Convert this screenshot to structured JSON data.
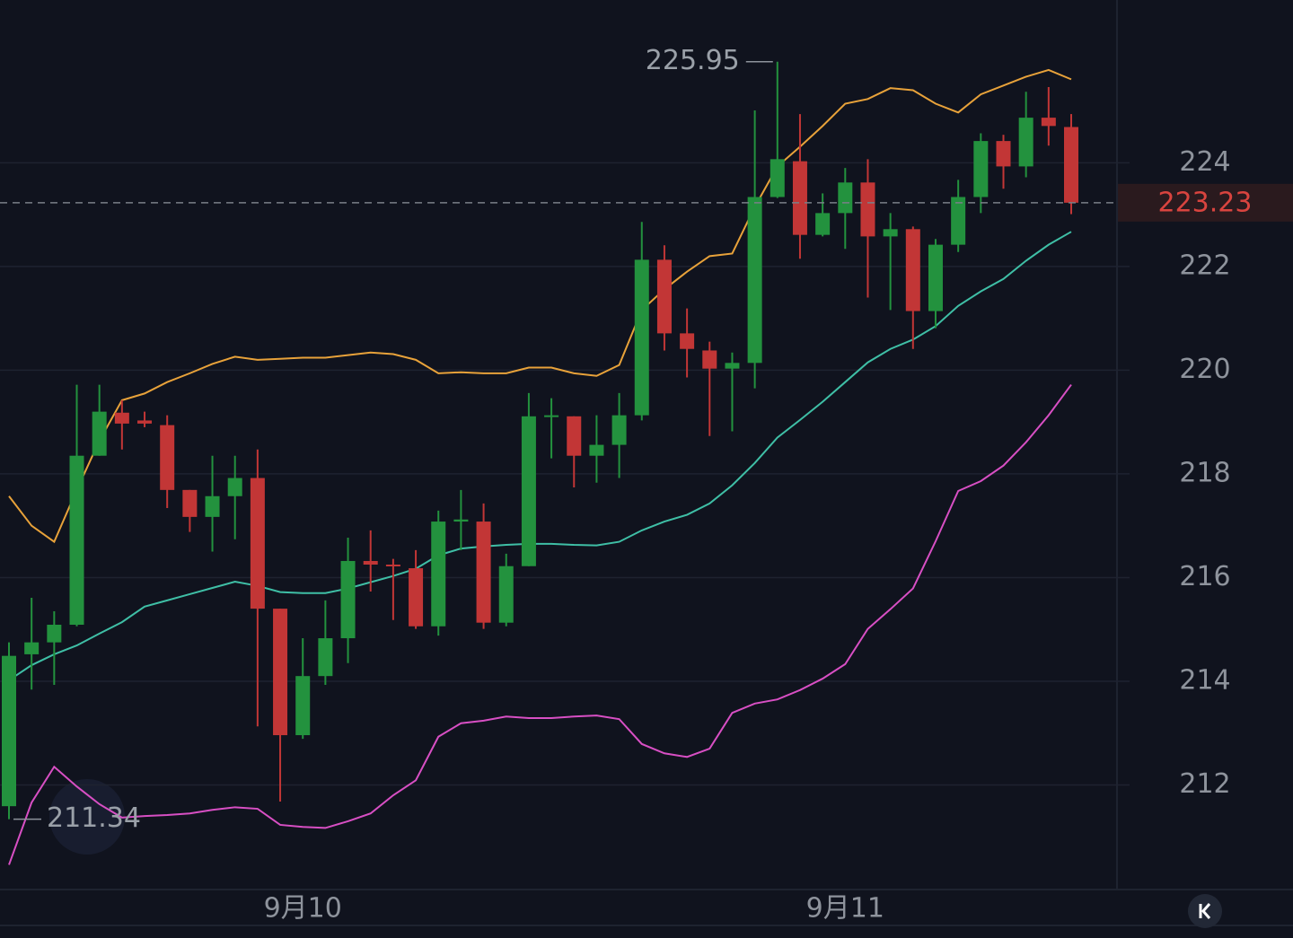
{
  "chart_data": {
    "type": "candlestick",
    "categories": [
      null,
      null,
      null,
      null,
      null,
      null,
      null,
      null,
      null,
      null,
      null,
      null,
      null,
      "9月10",
      null,
      null,
      null,
      null,
      null,
      null,
      null,
      null,
      null,
      null,
      null,
      null,
      null,
      null,
      null,
      null,
      null,
      null,
      null,
      null,
      null,
      null,
      null,
      "9月11",
      null,
      null,
      null,
      null,
      null,
      null,
      null,
      null,
      null,
      null
    ],
    "open": [
      211.59,
      214.52,
      214.75,
      215.09,
      218.35,
      219.18,
      219.03,
      218.94,
      217.69,
      217.17,
      217.57,
      217.92,
      215.4,
      212.96,
      214.1,
      214.83,
      216.32,
      216.25,
      216.18,
      215.06,
      217.08,
      217.08,
      215.13,
      216.22,
      219.11,
      219.11,
      218.35,
      218.56,
      219.13,
      222.13,
      220.71,
      220.38,
      220.03,
      220.14,
      223.34,
      224.03,
      222.61,
      223.03,
      223.62,
      222.58,
      222.72,
      221.14,
      222.42,
      223.34,
      224.42,
      223.93,
      224.87,
      224.69
    ],
    "high": [
      214.75,
      215.61,
      215.35,
      219.72,
      219.72,
      219.42,
      219.2,
      219.13,
      217.69,
      218.35,
      218.35,
      218.47,
      215.4,
      214.83,
      215.56,
      216.77,
      216.91,
      216.36,
      216.53,
      217.29,
      217.69,
      217.43,
      216.46,
      219.56,
      219.46,
      219.11,
      219.13,
      219.56,
      222.86,
      222.41,
      221.19,
      220.55,
      220.34,
      225.01,
      225.95,
      224.94,
      223.41,
      223.9,
      224.07,
      223.03,
      222.77,
      222.53,
      223.67,
      224.57,
      224.54,
      225.37,
      225.46,
      224.94
    ],
    "low": [
      211.34,
      213.84,
      213.93,
      215.06,
      218.35,
      218.47,
      218.9,
      217.34,
      216.88,
      216.5,
      216.74,
      213.13,
      211.68,
      212.89,
      213.93,
      214.35,
      215.73,
      215.18,
      215.01,
      214.88,
      216.53,
      215.01,
      215.06,
      216.22,
      218.3,
      217.74,
      217.83,
      217.92,
      219.03,
      220.38,
      219.86,
      218.73,
      218.82,
      219.65,
      223.32,
      222.15,
      222.58,
      222.34,
      221.4,
      221.16,
      220.41,
      220.81,
      222.28,
      223.03,
      223.5,
      223.72,
      224.33,
      223.01
    ],
    "close": [
      214.49,
      214.75,
      215.09,
      218.35,
      219.2,
      218.97,
      218.97,
      217.69,
      217.17,
      217.57,
      217.92,
      215.4,
      212.96,
      214.1,
      214.83,
      216.32,
      216.25,
      216.22,
      215.06,
      217.08,
      217.12,
      215.13,
      216.22,
      219.11,
      219.13,
      218.35,
      218.56,
      219.13,
      222.13,
      220.71,
      220.41,
      220.03,
      220.14,
      223.34,
      224.07,
      222.61,
      223.03,
      223.62,
      222.58,
      222.72,
      221.14,
      222.42,
      223.34,
      224.42,
      223.93,
      224.87,
      224.71,
      223.23
    ],
    "up_color": "#23923e",
    "down_color": "#c23636",
    "lines": [
      {
        "color": "#e8a23a",
        "values": [
          217.57,
          217.0,
          216.69,
          217.69,
          218.64,
          219.42,
          219.55,
          219.77,
          219.94,
          220.12,
          220.26,
          220.2,
          220.22,
          220.24,
          220.24,
          220.29,
          220.34,
          220.31,
          220.2,
          219.94,
          219.96,
          219.94,
          219.94,
          220.05,
          220.05,
          219.94,
          219.89,
          220.1,
          221.16,
          221.56,
          221.9,
          222.2,
          222.25,
          223.15,
          223.93,
          224.31,
          224.71,
          225.14,
          225.23,
          225.44,
          225.4,
          225.14,
          224.97,
          225.32,
          225.49,
          225.66,
          225.79,
          225.61
        ]
      },
      {
        "color": "#3fbfa6",
        "values": [
          214.02,
          214.31,
          214.52,
          214.69,
          214.92,
          215.14,
          215.44,
          215.56,
          215.68,
          215.8,
          215.92,
          215.84,
          215.72,
          215.7,
          215.7,
          215.79,
          215.91,
          216.03,
          216.17,
          216.43,
          216.56,
          216.6,
          216.63,
          216.65,
          216.65,
          216.63,
          216.62,
          216.69,
          216.91,
          217.08,
          217.21,
          217.43,
          217.78,
          218.21,
          218.7,
          219.04,
          219.39,
          219.77,
          220.15,
          220.41,
          220.59,
          220.85,
          221.24,
          221.52,
          221.76,
          222.11,
          222.42,
          222.67
        ]
      },
      {
        "color": "#d84fc4",
        "values": [
          210.46,
          211.66,
          212.35,
          211.97,
          211.63,
          211.37,
          211.4,
          211.42,
          211.45,
          211.52,
          211.57,
          211.54,
          211.23,
          211.19,
          211.17,
          211.3,
          211.45,
          211.8,
          212.09,
          212.93,
          213.19,
          213.24,
          213.32,
          213.29,
          213.29,
          213.32,
          213.34,
          213.27,
          212.79,
          212.61,
          212.54,
          212.7,
          213.39,
          213.57,
          213.65,
          213.83,
          214.05,
          214.33,
          215.01,
          215.39,
          215.79,
          216.7,
          217.67,
          217.86,
          218.16,
          218.61,
          219.13,
          219.72
        ]
      }
    ],
    "ylim": [
      210,
      227.14
    ],
    "yticks": [
      212,
      214,
      216,
      218,
      220,
      222,
      224
    ],
    "grid": true,
    "high_label": 225.95,
    "low_label": 211.34,
    "last_price": 223.23
  }
}
